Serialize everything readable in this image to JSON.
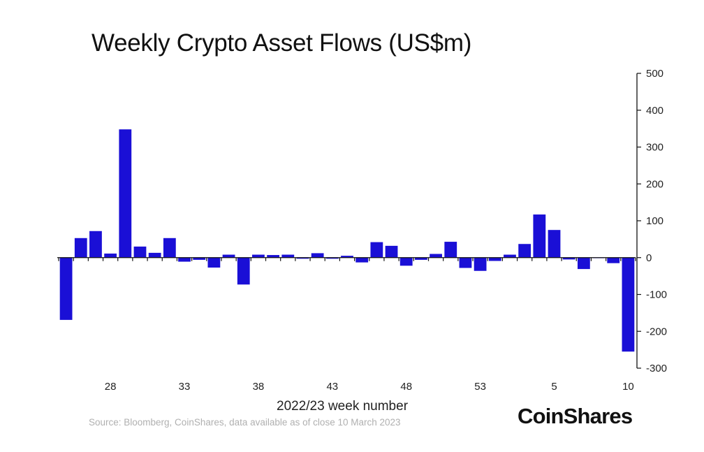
{
  "chart_data": {
    "type": "bar",
    "title": "Weekly Crypto Asset Flows (US$m)",
    "xlabel": "2022/23 week number",
    "ylabel": "",
    "ylim": [
      -300,
      500
    ],
    "yticks": [
      500,
      400,
      300,
      200,
      100,
      0,
      -100,
      -200,
      -300
    ],
    "y_axis_side": "right",
    "grid": false,
    "bar_color": "#1a0fd6",
    "categories": [
      "25",
      "26",
      "27",
      "28",
      "29",
      "30",
      "31",
      "32",
      "33",
      "34",
      "35",
      "36",
      "37",
      "38",
      "39",
      "40",
      "41",
      "42",
      "43",
      "44",
      "45",
      "46",
      "47",
      "48",
      "49",
      "50",
      "51",
      "52",
      "53",
      "1",
      "2",
      "3",
      "4",
      "5",
      "6",
      "7",
      "8",
      "9",
      "10"
    ],
    "xtick_labels": [
      {
        "category": "28",
        "label": "28"
      },
      {
        "category": "33",
        "label": "33"
      },
      {
        "category": "38",
        "label": "38"
      },
      {
        "category": "43",
        "label": "43"
      },
      {
        "category": "48",
        "label": "48"
      },
      {
        "category": "53",
        "label": "53"
      },
      {
        "category": "5",
        "label": "5"
      },
      {
        "category": "10",
        "label": "10"
      }
    ],
    "values": [
      -169,
      53,
      72,
      11,
      348,
      30,
      13,
      53,
      -11,
      -6,
      -27,
      8,
      -73,
      8,
      7,
      8,
      -3,
      12,
      -3,
      5,
      -13,
      42,
      32,
      -22,
      -6,
      10,
      43,
      -28,
      -36,
      -9,
      8,
      37,
      117,
      75,
      -5,
      -31,
      0,
      -15,
      -255
    ]
  },
  "footer": {
    "source": "Source: Bloomberg, CoinShares, data available as of close 10 March 2023",
    "brand": "CoinShares"
  }
}
